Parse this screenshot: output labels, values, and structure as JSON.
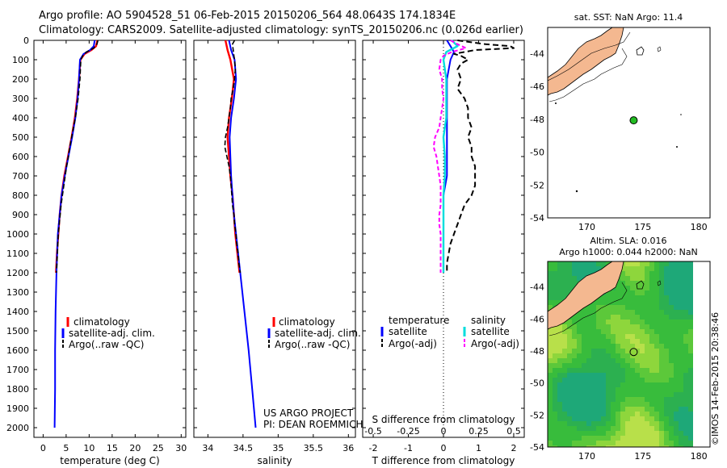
{
  "header": {
    "line1": "Argo profile: AO 5904528_51 06-Feb-2015 20150206_564 48.0643S 174.1834E",
    "line2": "Climatology: CARS2009. Satellite-adjusted climatology: synTS_20150206.nc (0.026d earlier)"
  },
  "credit": {
    "line1": "US ARGO PROJECT",
    "line2": "PI: DEAN ROEMMICH"
  },
  "imos_stamp": "©IMOS 14-Feb-2015 20:38:46",
  "colors": {
    "climatology": "#ff0000",
    "satellite": "#0000ff",
    "argo": "#000000",
    "sal_sat": "#00dddd",
    "sal_argo": "#ff00ff",
    "land": "#f4b890",
    "sla_green": "#44cc44",
    "argo_dot": "#22bb22"
  },
  "chart_data": [
    {
      "type": "line",
      "xlabel": "temperature (deg C)",
      "ylabel": "",
      "xlim": [
        -2,
        31
      ],
      "ylim": [
        2050,
        0
      ],
      "xticks": [
        0,
        5,
        10,
        15,
        20,
        25,
        30
      ],
      "yticks": [
        0,
        100,
        200,
        300,
        400,
        500,
        600,
        700,
        800,
        900,
        1000,
        1100,
        1200,
        1300,
        1400,
        1500,
        1600,
        1700,
        1800,
        1900,
        2000
      ],
      "legend": [
        "climatology",
        "satellite-adj. clim.",
        "Argo(..raw -QC)"
      ],
      "series": [
        {
          "name": "climatology",
          "depth": [
            0,
            30,
            50,
            70,
            100,
            200,
            300,
            400,
            500,
            600,
            700,
            800,
            900,
            1000,
            1100,
            1200
          ],
          "values": [
            11.8,
            11.5,
            10.5,
            9.0,
            8.1,
            7.8,
            7.4,
            6.9,
            6.2,
            5.4,
            4.6,
            4.0,
            3.6,
            3.3,
            3.0,
            2.8
          ]
        },
        {
          "name": "satellite-adj. clim.",
          "depth": [
            0,
            30,
            50,
            70,
            100,
            200,
            300,
            400,
            500,
            600,
            700,
            800,
            900,
            1000,
            1200,
            1400,
            1600,
            1800,
            2000
          ],
          "values": [
            11.2,
            11.0,
            10.2,
            8.8,
            8.0,
            7.8,
            7.5,
            7.0,
            6.3,
            5.5,
            4.7,
            4.0,
            3.6,
            3.2,
            2.9,
            2.7,
            2.6,
            2.6,
            2.5
          ]
        },
        {
          "name": "Argo(..raw -QC)",
          "depth": [
            0,
            20,
            40,
            60,
            80,
            100,
            150,
            200,
            250,
            300,
            350,
            400,
            450,
            500,
            550,
            600,
            650,
            700,
            750,
            800,
            850,
            900,
            950,
            1000,
            1050,
            1100,
            1150,
            1200
          ],
          "values": [
            11.9,
            11.7,
            11.0,
            9.4,
            8.6,
            8.2,
            8.1,
            8.0,
            7.8,
            7.6,
            7.3,
            7.0,
            6.6,
            6.2,
            5.8,
            5.5,
            5.1,
            4.8,
            4.5,
            4.2,
            3.9,
            3.7,
            3.5,
            3.3,
            3.2,
            3.1,
            3.0,
            2.9
          ]
        }
      ]
    },
    {
      "type": "line",
      "xlabel": "salinity",
      "xlim": [
        33.8,
        36.1
      ],
      "ylim": [
        2050,
        0
      ],
      "xticks": [
        34,
        34.5,
        35,
        35.5,
        36
      ],
      "legend": [
        "climatology",
        "satellite-adj. clim.",
        "Argo(..raw -QC)"
      ],
      "series": [
        {
          "name": "climatology",
          "depth": [
            0,
            50,
            100,
            200,
            300,
            400,
            500,
            600,
            700,
            800,
            900,
            1000,
            1100,
            1200
          ],
          "values": [
            34.25,
            34.28,
            34.32,
            34.37,
            34.34,
            34.3,
            34.28,
            34.3,
            34.32,
            34.35,
            34.37,
            34.39,
            34.42,
            34.45
          ]
        },
        {
          "name": "satellite-adj. clim.",
          "depth": [
            0,
            50,
            100,
            200,
            300,
            400,
            500,
            600,
            700,
            800,
            900,
            1000,
            1200,
            1400,
            1600,
            1800,
            2000
          ],
          "values": [
            34.3,
            34.33,
            34.38,
            34.4,
            34.37,
            34.33,
            34.31,
            34.32,
            34.33,
            34.35,
            34.37,
            34.4,
            34.46,
            34.52,
            34.58,
            34.63,
            34.68
          ]
        },
        {
          "name": "Argo(..raw -QC)",
          "depth": [
            0,
            20,
            50,
            80,
            100,
            150,
            200,
            250,
            300,
            350,
            400,
            450,
            500,
            550,
            600,
            650,
            700,
            750,
            800,
            850,
            900,
            950,
            1000,
            1050,
            1100,
            1150,
            1200
          ],
          "values": [
            34.38,
            34.35,
            34.36,
            34.37,
            34.38,
            34.39,
            34.38,
            34.36,
            34.33,
            34.32,
            34.3,
            34.28,
            34.25,
            34.24,
            34.27,
            34.3,
            34.32,
            34.33,
            34.34,
            34.35,
            34.37,
            34.38,
            34.4,
            34.41,
            34.43,
            34.44,
            34.46
          ]
        }
      ]
    },
    {
      "type": "line",
      "xlabel": "T difference from climatology",
      "xlabel_top": "S difference from climatology",
      "xlim": [
        -2.3,
        2.3
      ],
      "ylim": [
        2050,
        0
      ],
      "xticks": [
        -2,
        -1,
        0,
        1,
        2
      ],
      "xticks_top": [
        -0.5,
        -0.25,
        0,
        0.25,
        0.5
      ],
      "legend_titles": [
        "temperature",
        "salinity"
      ],
      "legend": [
        "satellite",
        "Argo(-adj)",
        "satellite",
        "Argo(-adj)"
      ],
      "series": [
        {
          "name": "temperature satellite",
          "depth": [
            0,
            30,
            60,
            100,
            200,
            300,
            400,
            500,
            600,
            700,
            800,
            900,
            1000,
            1200
          ],
          "values": [
            0.1,
            0.2,
            0.3,
            0.2,
            0.1,
            0.1,
            0.1,
            0.1,
            0.1,
            0.1,
            0.0,
            0.0,
            0.0,
            0.0
          ]
        },
        {
          "name": "temperature Argo(-adj)",
          "depth": [
            0,
            20,
            30,
            40,
            50,
            60,
            70,
            80,
            100,
            120,
            150,
            200,
            250,
            300,
            350,
            400,
            450,
            500,
            550,
            600,
            650,
            700,
            750,
            800,
            850,
            900,
            950,
            1000,
            1050,
            1100,
            1150,
            1200
          ],
          "values": [
            0.4,
            1.2,
            1.9,
            2.0,
            0.9,
            0.6,
            0.3,
            0.5,
            0.7,
            0.5,
            0.4,
            0.5,
            0.4,
            0.6,
            0.7,
            0.7,
            0.8,
            0.7,
            0.8,
            0.8,
            0.9,
            0.9,
            0.9,
            0.8,
            0.6,
            0.5,
            0.4,
            0.3,
            0.2,
            0.15,
            0.1,
            0.1
          ]
        },
        {
          "name": "salinity satellite",
          "depth": [
            0,
            30,
            60,
            100,
            200,
            300,
            400,
            500,
            600,
            700,
            800,
            900,
            1000,
            1100,
            1200
          ],
          "values": [
            0.06,
            0.1,
            0.02,
            0.0,
            0.02,
            0.02,
            0.02,
            0.0,
            0.01,
            0.01,
            0.0,
            0.0,
            0.0,
            0.0,
            0.0
          ]
        },
        {
          "name": "salinity Argo(-adj)",
          "depth": [
            0,
            20,
            40,
            60,
            80,
            100,
            150,
            200,
            250,
            300,
            350,
            400,
            450,
            500,
            550,
            600,
            650,
            700,
            750,
            800,
            850,
            900,
            950,
            1000,
            1050,
            1100,
            1150,
            1200
          ],
          "values": [
            0.05,
            0.1,
            0.16,
            0.06,
            0.0,
            -0.02,
            -0.03,
            -0.01,
            -0.01,
            0.0,
            -0.01,
            -0.02,
            -0.03,
            -0.06,
            -0.07,
            -0.05,
            -0.04,
            -0.03,
            -0.02,
            -0.02,
            -0.02,
            -0.03,
            -0.03,
            -0.02,
            -0.02,
            -0.02,
            -0.02,
            -0.02
          ]
        }
      ]
    },
    {
      "type": "map",
      "title": "sat. SST: NaN Argo: 11.4",
      "xlim": [
        166.5,
        181
      ],
      "ylim": [
        -54,
        -42.4
      ],
      "xticks": [
        170,
        175,
        180
      ],
      "yticks": [
        -44,
        -46,
        -48,
        -50,
        -52,
        -54
      ],
      "argo_position": [
        174.18,
        -48.06
      ]
    },
    {
      "type": "heatmap",
      "title_line1": "Altim. SLA: 0.016",
      "title_line2": "Argo h1000: 0.044 h2000: NaN",
      "xlim": [
        166.5,
        181
      ],
      "ylim": [
        -54,
        -42.4
      ],
      "xticks": [
        170,
        175,
        180
      ],
      "yticks": [
        -44,
        -46,
        -48,
        -50,
        -52,
        -54
      ],
      "argo_position": [
        174.18,
        -48.06
      ]
    }
  ]
}
